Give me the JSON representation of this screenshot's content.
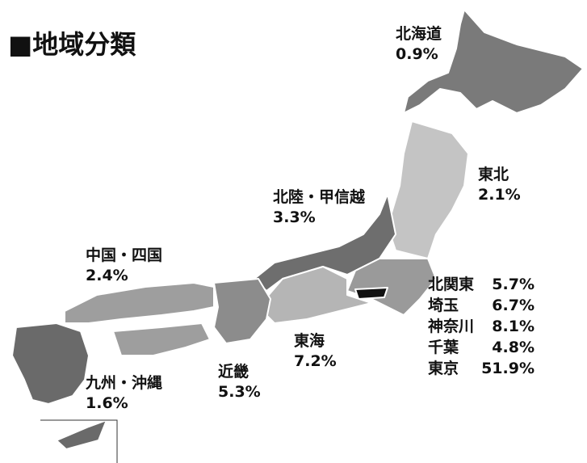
{
  "title": "■地域分類",
  "regions": [
    {
      "name": "北海道",
      "share": "0.9%"
    },
    {
      "name": "東北",
      "share": "2.1%"
    },
    {
      "name": "北陸・甲信越",
      "share": "3.3%"
    },
    {
      "name": "中国・四国",
      "share": "2.4%"
    },
    {
      "name": "近畿",
      "share": "5.3%"
    },
    {
      "name": "東海",
      "share": "7.2%"
    },
    {
      "name": "九州・沖縄",
      "share": "1.6%"
    }
  ],
  "kanto": [
    {
      "name": "北関東",
      "share": "5.7%"
    },
    {
      "name": "埼玉",
      "share": "6.7%"
    },
    {
      "name": "神奈川",
      "share": "8.1%"
    },
    {
      "name": "千葉",
      "share": "4.8%"
    },
    {
      "name": "東京",
      "share": "51.9%"
    }
  ]
}
